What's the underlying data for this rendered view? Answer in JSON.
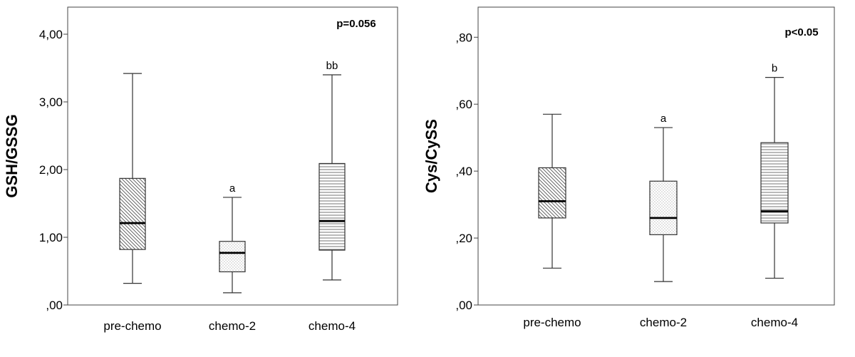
{
  "chart_data": [
    {
      "type": "box",
      "ylabel": "GSH/GSSG",
      "ylim": [
        0,
        4.4
      ],
      "yticks": [
        0,
        1,
        2,
        3,
        4
      ],
      "ytick_labels": [
        ",00",
        "1,00",
        "2,00",
        "3,00",
        "4,00"
      ],
      "categories": [
        "pre-chemo",
        "chemo-2",
        "chemo-4"
      ],
      "annotation": "p=0.056",
      "boxes": [
        {
          "whisker_low": 0.32,
          "q1": 0.82,
          "median": 1.21,
          "q3": 1.87,
          "whisker_high": 3.42,
          "label": "",
          "pattern": "diag-down"
        },
        {
          "whisker_low": 0.18,
          "q1": 0.49,
          "median": 0.77,
          "q3": 0.94,
          "whisker_high": 1.59,
          "label": "a",
          "pattern": "dots"
        },
        {
          "whisker_low": 0.37,
          "q1": 0.81,
          "median": 1.24,
          "q3": 2.09,
          "whisker_high": 3.4,
          "label": "bb",
          "pattern": "horiz"
        }
      ]
    },
    {
      "type": "box",
      "ylabel": "Cys/CySS",
      "ylim": [
        0,
        0.89
      ],
      "yticks": [
        0,
        0.2,
        0.4,
        0.6,
        0.8
      ],
      "ytick_labels": [
        ",00",
        ",20",
        ",40",
        ",60",
        ",80"
      ],
      "categories": [
        "pre-chemo",
        "chemo-2",
        "chemo-4"
      ],
      "annotation": "p<0.05",
      "boxes": [
        {
          "whisker_low": 0.11,
          "q1": 0.26,
          "median": 0.31,
          "q3": 0.41,
          "whisker_high": 0.57,
          "label": "",
          "pattern": "diag-down"
        },
        {
          "whisker_low": 0.07,
          "q1": 0.21,
          "median": 0.26,
          "q3": 0.37,
          "whisker_high": 0.53,
          "label": "a",
          "pattern": "dots"
        },
        {
          "whisker_low": 0.08,
          "q1": 0.245,
          "median": 0.28,
          "q3": 0.485,
          "whisker_high": 0.68,
          "label": "b",
          "pattern": "horiz"
        }
      ]
    }
  ],
  "colors": {
    "stroke": "#333333",
    "frame": "#444444",
    "text": "#000000",
    "background": "#ffffff"
  }
}
